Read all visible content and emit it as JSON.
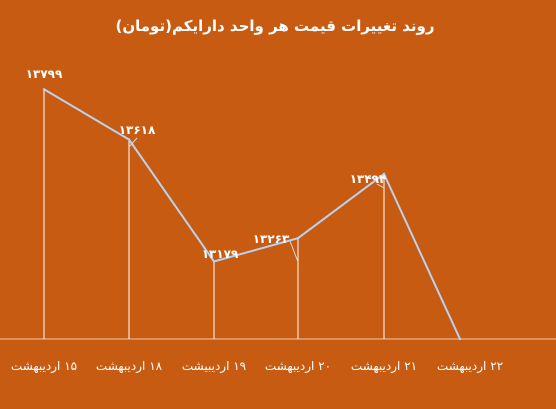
{
  "chart_data": {
    "type": "line",
    "title": "روند تغییرات قیمت هر واحد دارایکم(تومان)",
    "categories": [
      "۱۵ اردیبهشت",
      "۱۸ اردیبهشت",
      "۱۹ اردیبیشت",
      "۲۰ اردیبهشت",
      "۲۱ اردیبهشت",
      "۲۲ اردیبهشت"
    ],
    "values": [
      13799,
      13618,
      13179,
      13263,
      13494,
      12900
    ],
    "value_labels": [
      "۱۳۷۹۹",
      "۱۳۶۱۸",
      "۱۳۱۷۹",
      "۱۳۲۶۳",
      "۱۳۴۹۴",
      ""
    ],
    "xlabel": "",
    "ylabel": "",
    "ylim": [
      12900,
      13850
    ],
    "grid": false,
    "legend": "none",
    "colors": {
      "background": "#c75b12",
      "line": "#b9d2f2",
      "drop_lines": "#ffffff",
      "text": "#ffffff"
    }
  }
}
